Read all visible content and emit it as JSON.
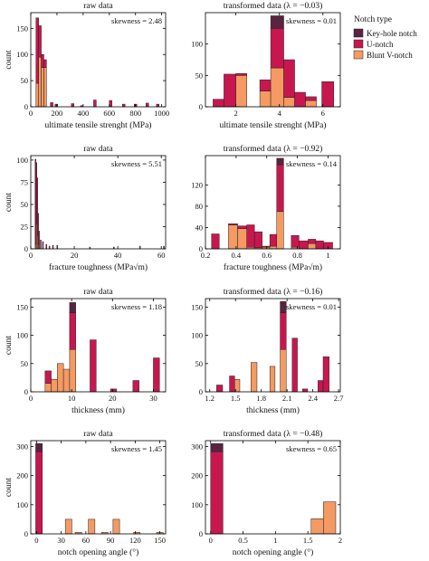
{
  "legend": {
    "title": "Notch type",
    "items": [
      {
        "label": "Key-hole notch",
        "color": "#5a2340"
      },
      {
        "label": "U-notch",
        "color": "#c8174f"
      },
      {
        "label": "Blunt V-notch",
        "color": "#f49a62"
      }
    ]
  },
  "colors": {
    "keyhole": "#5a2340",
    "unotch": "#c8174f",
    "blunt": "#f49a62",
    "axis": "#000000"
  },
  "chart_data": [
    {
      "type": "bar",
      "title": "raw data",
      "xlabel": "ultimate tensile strenght (MPa)",
      "ylabel": "count",
      "annotation": "skewness = 2.48",
      "xlim": [
        0,
        1030
      ],
      "ylim": [
        0,
        180
      ],
      "xticks": [
        0,
        200,
        400,
        600,
        800,
        1000
      ],
      "yticks": [
        0,
        50,
        100,
        150
      ],
      "bins": [
        {
          "x0": 40,
          "x1": 60,
          "blunt": 45,
          "unotch": 125,
          "keyhole": 0
        },
        {
          "x0": 60,
          "x1": 80,
          "blunt": 95,
          "unotch": 60,
          "keyhole": 0
        },
        {
          "x0": 80,
          "x1": 100,
          "blunt": 75,
          "unotch": 25,
          "keyhole": 0
        },
        {
          "x0": 100,
          "x1": 120,
          "blunt": 75,
          "unotch": 15,
          "keyhole": 0
        },
        {
          "x0": 150,
          "x1": 170,
          "blunt": 0,
          "unotch": 8,
          "keyhole": 0
        },
        {
          "x0": 185,
          "x1": 205,
          "blunt": 0,
          "unotch": 5,
          "keyhole": 0
        },
        {
          "x0": 310,
          "x1": 330,
          "blunt": 0,
          "unotch": 6,
          "keyhole": 0
        },
        {
          "x0": 380,
          "x1": 400,
          "blunt": 0,
          "unotch": 2,
          "keyhole": 0
        },
        {
          "x0": 480,
          "x1": 500,
          "blunt": 0,
          "unotch": 13,
          "keyhole": 0
        },
        {
          "x0": 600,
          "x1": 620,
          "blunt": 0,
          "unotch": 12,
          "keyhole": 0
        },
        {
          "x0": 700,
          "x1": 720,
          "blunt": 0,
          "unotch": 5,
          "keyhole": 0
        },
        {
          "x0": 790,
          "x1": 810,
          "blunt": 0,
          "unotch": 5,
          "keyhole": 0
        },
        {
          "x0": 880,
          "x1": 900,
          "blunt": 0,
          "unotch": 7,
          "keyhole": 0
        },
        {
          "x0": 960,
          "x1": 980,
          "blunt": 0,
          "unotch": 5,
          "keyhole": 0
        }
      ]
    },
    {
      "type": "bar",
      "title": "transformed data (λ = −0.03)",
      "xlabel": "ultimate tensile strenght (MPa)",
      "ylabel": "",
      "annotation": "skewness = 0.01",
      "xlim": [
        0.6,
        6.8
      ],
      "ylim": [
        0,
        150
      ],
      "xticks": [
        2,
        4,
        6
      ],
      "yticks": [
        0,
        50,
        100
      ],
      "bins": [
        {
          "x0": 0.95,
          "x1": 1.45,
          "blunt": 0,
          "unotch": 12,
          "keyhole": 0
        },
        {
          "x0": 1.45,
          "x1": 2.0,
          "blunt": 0,
          "unotch": 52,
          "keyhole": 0
        },
        {
          "x0": 2.0,
          "x1": 2.5,
          "blunt": 50,
          "unotch": 3,
          "keyhole": 0
        },
        {
          "x0": 3.1,
          "x1": 3.6,
          "blunt": 25,
          "unotch": 18,
          "keyhole": 0
        },
        {
          "x0": 3.6,
          "x1": 4.2,
          "blunt": 62,
          "unotch": 63,
          "keyhole": 20
        },
        {
          "x0": 4.2,
          "x1": 4.7,
          "blunt": 15,
          "unotch": 60,
          "keyhole": 0
        },
        {
          "x0": 4.7,
          "x1": 5.2,
          "blunt": 0,
          "unotch": 23,
          "keyhole": 0
        },
        {
          "x0": 5.2,
          "x1": 5.7,
          "blunt": 10,
          "unotch": 6,
          "keyhole": 0
        },
        {
          "x0": 5.95,
          "x1": 6.5,
          "blunt": 0,
          "unotch": 40,
          "keyhole": 0
        }
      ]
    },
    {
      "type": "bar",
      "title": "raw data",
      "xlabel": "fracture toughness (MPa√m)",
      "ylabel": "count",
      "annotation": "skewness = 5.51",
      "xlim": [
        0,
        62
      ],
      "ylim": [
        0,
        105
      ],
      "xticks": [
        0,
        20,
        40,
        60
      ],
      "yticks": [
        0,
        25,
        50,
        75,
        100
      ],
      "bins": [
        {
          "x0": 2.0,
          "x1": 2.4,
          "blunt": 5,
          "unotch": 96,
          "keyhole": 0
        },
        {
          "x0": 2.4,
          "x1": 2.8,
          "blunt": 28,
          "unotch": 69,
          "keyhole": 0
        },
        {
          "x0": 2.8,
          "x1": 3.2,
          "blunt": 15,
          "unotch": 65,
          "keyhole": 0
        },
        {
          "x0": 3.2,
          "x1": 3.6,
          "blunt": 5,
          "unotch": 35,
          "keyhole": 0
        },
        {
          "x0": 3.6,
          "x1": 4.0,
          "blunt": 0,
          "unotch": 20,
          "keyhole": 0
        },
        {
          "x0": 4.4,
          "x1": 4.8,
          "blunt": 0,
          "unotch": 10,
          "keyhole": 0
        },
        {
          "x0": 5.4,
          "x1": 5.8,
          "blunt": 0,
          "unotch": 8,
          "keyhole": 0
        },
        {
          "x0": 7.0,
          "x1": 7.4,
          "blunt": 0,
          "unotch": 5,
          "keyhole": 0
        },
        {
          "x0": 8.4,
          "x1": 8.8,
          "blunt": 0,
          "unotch": 3,
          "keyhole": 0
        },
        {
          "x0": 10.0,
          "x1": 10.4,
          "blunt": 0,
          "unotch": 4,
          "keyhole": 0
        },
        {
          "x0": 12.0,
          "x1": 12.4,
          "blunt": 0,
          "unotch": 4,
          "keyhole": 0
        },
        {
          "x0": 27.0,
          "x1": 27.4,
          "blunt": 0,
          "unotch": 2,
          "keyhole": 0
        },
        {
          "x0": 38.0,
          "x1": 38.4,
          "blunt": 0,
          "unotch": 2,
          "keyhole": 0
        },
        {
          "x0": 50.0,
          "x1": 50.4,
          "blunt": 0,
          "unotch": 3,
          "keyhole": 0
        },
        {
          "x0": 61.0,
          "x1": 61.4,
          "blunt": 0,
          "unotch": 3,
          "keyhole": 0
        }
      ]
    },
    {
      "type": "bar",
      "title": "transformed data (λ = −0.92)",
      "xlabel": "fracture toughness (MPa√m)",
      "ylabel": "",
      "annotation": "skewness = 0.14",
      "xlim": [
        0.2,
        1.08
      ],
      "ylim": [
        0,
        175
      ],
      "xticks": [
        0.2,
        0.4,
        0.6,
        0.8,
        1.0
      ],
      "yticks": [
        0,
        40,
        80,
        120
      ],
      "bins": [
        {
          "x0": 0.24,
          "x1": 0.29,
          "blunt": 0,
          "unotch": 28,
          "keyhole": 0
        },
        {
          "x0": 0.35,
          "x1": 0.41,
          "blunt": 45,
          "unotch": 2,
          "keyhole": 0
        },
        {
          "x0": 0.41,
          "x1": 0.47,
          "blunt": 38,
          "unotch": 5,
          "keyhole": 0
        },
        {
          "x0": 0.47,
          "x1": 0.52,
          "blunt": 3,
          "unotch": 42,
          "keyhole": 0
        },
        {
          "x0": 0.52,
          "x1": 0.57,
          "blunt": 2,
          "unotch": 30,
          "keyhole": 0
        },
        {
          "x0": 0.57,
          "x1": 0.62,
          "blunt": 3,
          "unotch": 2,
          "keyhole": 0
        },
        {
          "x0": 0.62,
          "x1": 0.665,
          "blunt": 5,
          "unotch": 22,
          "keyhole": 0
        },
        {
          "x0": 0.665,
          "x1": 0.71,
          "blunt": 70,
          "unotch": 88,
          "keyhole": 12
        },
        {
          "x0": 0.76,
          "x1": 0.81,
          "blunt": 3,
          "unotch": 22,
          "keyhole": 0
        },
        {
          "x0": 0.81,
          "x1": 0.87,
          "blunt": 0,
          "unotch": 15,
          "keyhole": 0
        },
        {
          "x0": 0.87,
          "x1": 0.92,
          "blunt": 10,
          "unotch": 8,
          "keyhole": 0
        },
        {
          "x0": 0.92,
          "x1": 0.97,
          "blunt": 0,
          "unotch": 15,
          "keyhole": 0
        },
        {
          "x0": 0.97,
          "x1": 1.03,
          "blunt": 0,
          "unotch": 12,
          "keyhole": 0
        }
      ]
    },
    {
      "type": "bar",
      "title": "raw data",
      "xlabel": "thickness (mm)",
      "ylabel": "count",
      "annotation": "skewness = 1.18",
      "xlim": [
        0,
        33
      ],
      "ylim": [
        0,
        165
      ],
      "xticks": [
        0,
        10,
        20,
        30
      ],
      "yticks": [
        0,
        50,
        100,
        150
      ],
      "bins": [
        {
          "x0": 3.5,
          "x1": 5.0,
          "blunt": 15,
          "unotch": 22,
          "keyhole": 0
        },
        {
          "x0": 5.0,
          "x1": 6.5,
          "blunt": 22,
          "unotch": 0,
          "keyhole": 0
        },
        {
          "x0": 6.5,
          "x1": 8.0,
          "blunt": 50,
          "unotch": 0,
          "keyhole": 0
        },
        {
          "x0": 8.0,
          "x1": 9.5,
          "blunt": 40,
          "unotch": 0,
          "keyhole": 0
        },
        {
          "x0": 9.5,
          "x1": 11.0,
          "blunt": 75,
          "unotch": 65,
          "keyhole": 18
        },
        {
          "x0": 14.5,
          "x1": 16.0,
          "blunt": 0,
          "unotch": 92,
          "keyhole": 0
        },
        {
          "x0": 19.5,
          "x1": 21.0,
          "blunt": 0,
          "unotch": 5,
          "keyhole": 0
        },
        {
          "x0": 25.0,
          "x1": 26.5,
          "blunt": 0,
          "unotch": 20,
          "keyhole": 0
        },
        {
          "x0": 30.0,
          "x1": 31.5,
          "blunt": 0,
          "unotch": 60,
          "keyhole": 0
        }
      ]
    },
    {
      "type": "bar",
      "title": "transformed data (λ = −0.16)",
      "xlabel": "thickness (mm)",
      "ylabel": "",
      "annotation": "skewness = 0.01",
      "xlim": [
        1.15,
        2.72
      ],
      "ylim": [
        0,
        165
      ],
      "xticks": [
        1.2,
        1.5,
        1.8,
        2.1,
        2.4,
        2.7
      ],
      "yticks": [
        0,
        50,
        100,
        150
      ],
      "bins": [
        {
          "x0": 1.28,
          "x1": 1.35,
          "blunt": 0,
          "unotch": 12,
          "keyhole": 0
        },
        {
          "x0": 1.43,
          "x1": 1.49,
          "blunt": 0,
          "unotch": 28,
          "keyhole": 0
        },
        {
          "x0": 1.49,
          "x1": 1.55,
          "blunt": 22,
          "unotch": 0,
          "keyhole": 0
        },
        {
          "x0": 1.68,
          "x1": 1.75,
          "blunt": 52,
          "unotch": 0,
          "keyhole": 0
        },
        {
          "x0": 1.9,
          "x1": 1.96,
          "blunt": 45,
          "unotch": 0,
          "keyhole": 0
        },
        {
          "x0": 2.02,
          "x1": 2.09,
          "blunt": 75,
          "unotch": 65,
          "keyhole": 20
        },
        {
          "x0": 2.16,
          "x1": 2.22,
          "blunt": 0,
          "unotch": 95,
          "keyhole": 0
        },
        {
          "x0": 2.28,
          "x1": 2.34,
          "blunt": 0,
          "unotch": 5,
          "keyhole": 0
        },
        {
          "x0": 2.46,
          "x1": 2.52,
          "blunt": 0,
          "unotch": 20,
          "keyhole": 0
        },
        {
          "x0": 2.52,
          "x1": 2.59,
          "blunt": 0,
          "unotch": 62,
          "keyhole": 0
        }
      ]
    },
    {
      "type": "bar",
      "title": "raw data",
      "xlabel": "notch opening angle (°)",
      "ylabel": "count",
      "annotation": "skewness = 1.45",
      "xlim": [
        -7,
        157
      ],
      "ylim": [
        0,
        320
      ],
      "xticks": [
        0,
        30,
        60,
        90,
        120,
        150
      ],
      "yticks": [
        0,
        100,
        200,
        300
      ],
      "bins": [
        {
          "x0": -1,
          "x1": 7,
          "blunt": 0,
          "unotch": 282,
          "keyhole": 28
        },
        {
          "x0": 35,
          "x1": 43,
          "blunt": 50,
          "unotch": 0,
          "keyhole": 0
        },
        {
          "x0": 47,
          "x1": 55,
          "blunt": 5,
          "unotch": 0,
          "keyhole": 0
        },
        {
          "x0": 63,
          "x1": 71,
          "blunt": 50,
          "unotch": 0,
          "keyhole": 0
        },
        {
          "x0": 79,
          "x1": 87,
          "blunt": 5,
          "unotch": 0,
          "keyhole": 0
        },
        {
          "x0": 93,
          "x1": 101,
          "blunt": 50,
          "unotch": 0,
          "keyhole": 0
        },
        {
          "x0": 118,
          "x1": 126,
          "blunt": 5,
          "unotch": 0,
          "keyhole": 0
        },
        {
          "x0": 146,
          "x1": 154,
          "blunt": 5,
          "unotch": 0,
          "keyhole": 0
        }
      ]
    },
    {
      "type": "bar",
      "title": "transformed data (λ = −0.48)",
      "xlabel": "notch opening angle (°)",
      "ylabel": "",
      "annotation": "skewness = 0.65",
      "xlim": [
        -0.08,
        2.0
      ],
      "ylim": [
        0,
        320
      ],
      "xticks": [
        0.0,
        0.5,
        1.0,
        1.5,
        2.0
      ],
      "yticks": [
        0,
        100,
        200,
        300
      ],
      "bins": [
        {
          "x0": 0.0,
          "x1": 0.19,
          "blunt": 0,
          "unotch": 282,
          "keyhole": 28
        },
        {
          "x0": 1.55,
          "x1": 1.74,
          "blunt": 52,
          "unotch": 0,
          "keyhole": 0
        },
        {
          "x0": 1.74,
          "x1": 1.93,
          "blunt": 110,
          "unotch": 0,
          "keyhole": 0
        }
      ]
    }
  ]
}
